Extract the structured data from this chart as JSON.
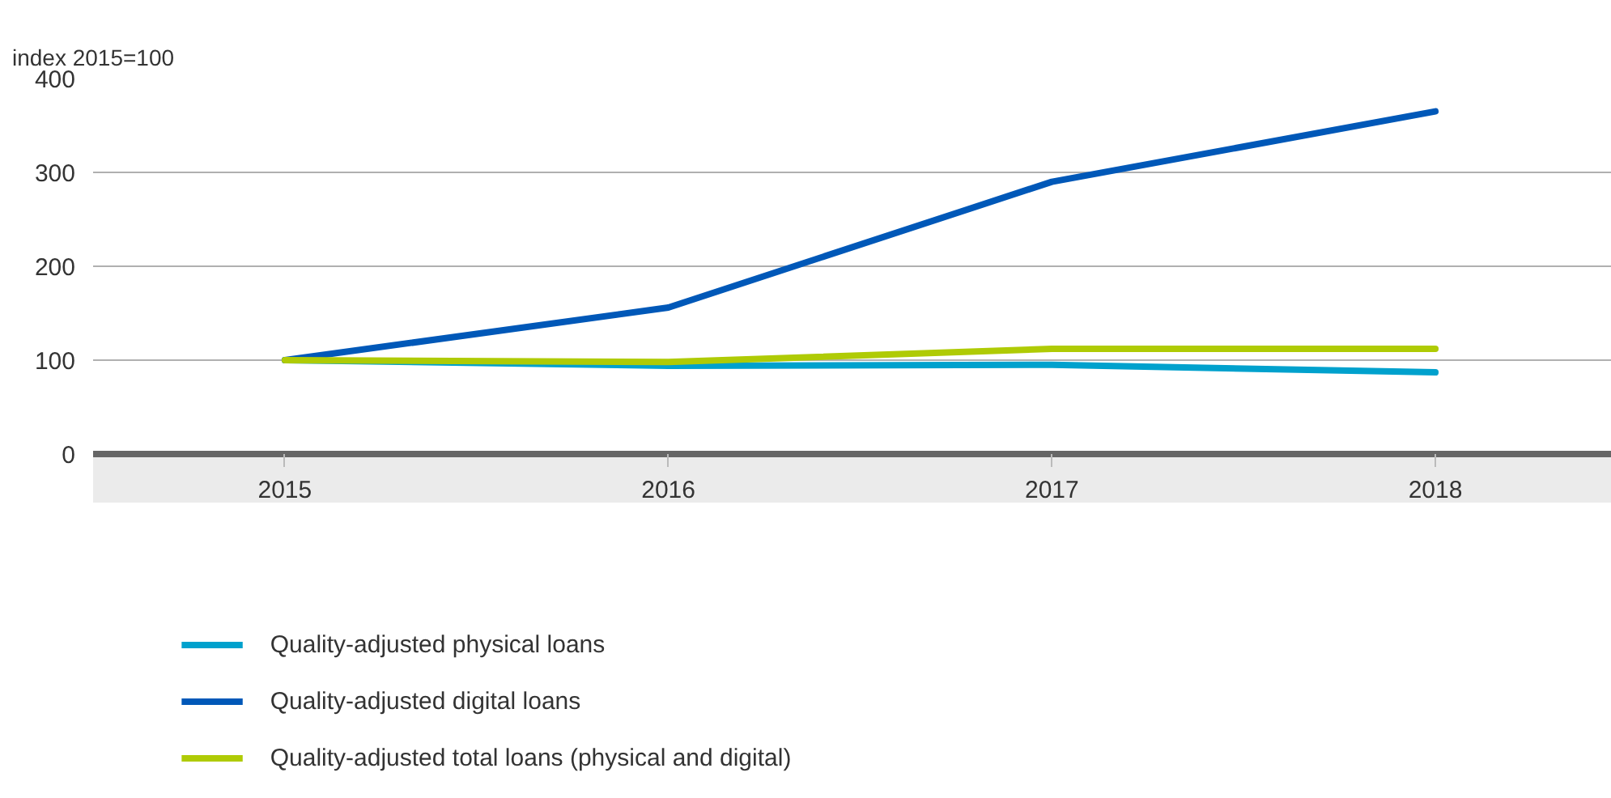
{
  "chart_data": {
    "type": "line",
    "ylabel": "index 2015=100",
    "x": [
      2015,
      2016,
      2017,
      2018
    ],
    "series": [
      {
        "name": "Quality-adjusted physical loans",
        "color": "#00a1cd",
        "values": [
          100,
          94,
          95,
          87
        ]
      },
      {
        "name": "Quality-adjusted digital loans",
        "color": "#0058b8",
        "values": [
          100,
          156,
          290,
          365
        ]
      },
      {
        "name": "Quality-adjusted total loans (physical and digital)",
        "color": "#afcb05",
        "values": [
          100,
          98,
          112,
          112
        ]
      }
    ],
    "xlim": [
      2014.5,
      2018.46
    ],
    "xticks": [
      2015,
      2016,
      2017,
      2018
    ],
    "ylim": [
      0,
      400
    ],
    "yticks": [
      0,
      100,
      200,
      300,
      400
    ],
    "grid": "y",
    "legend": "bottom",
    "line_style": "solid"
  }
}
